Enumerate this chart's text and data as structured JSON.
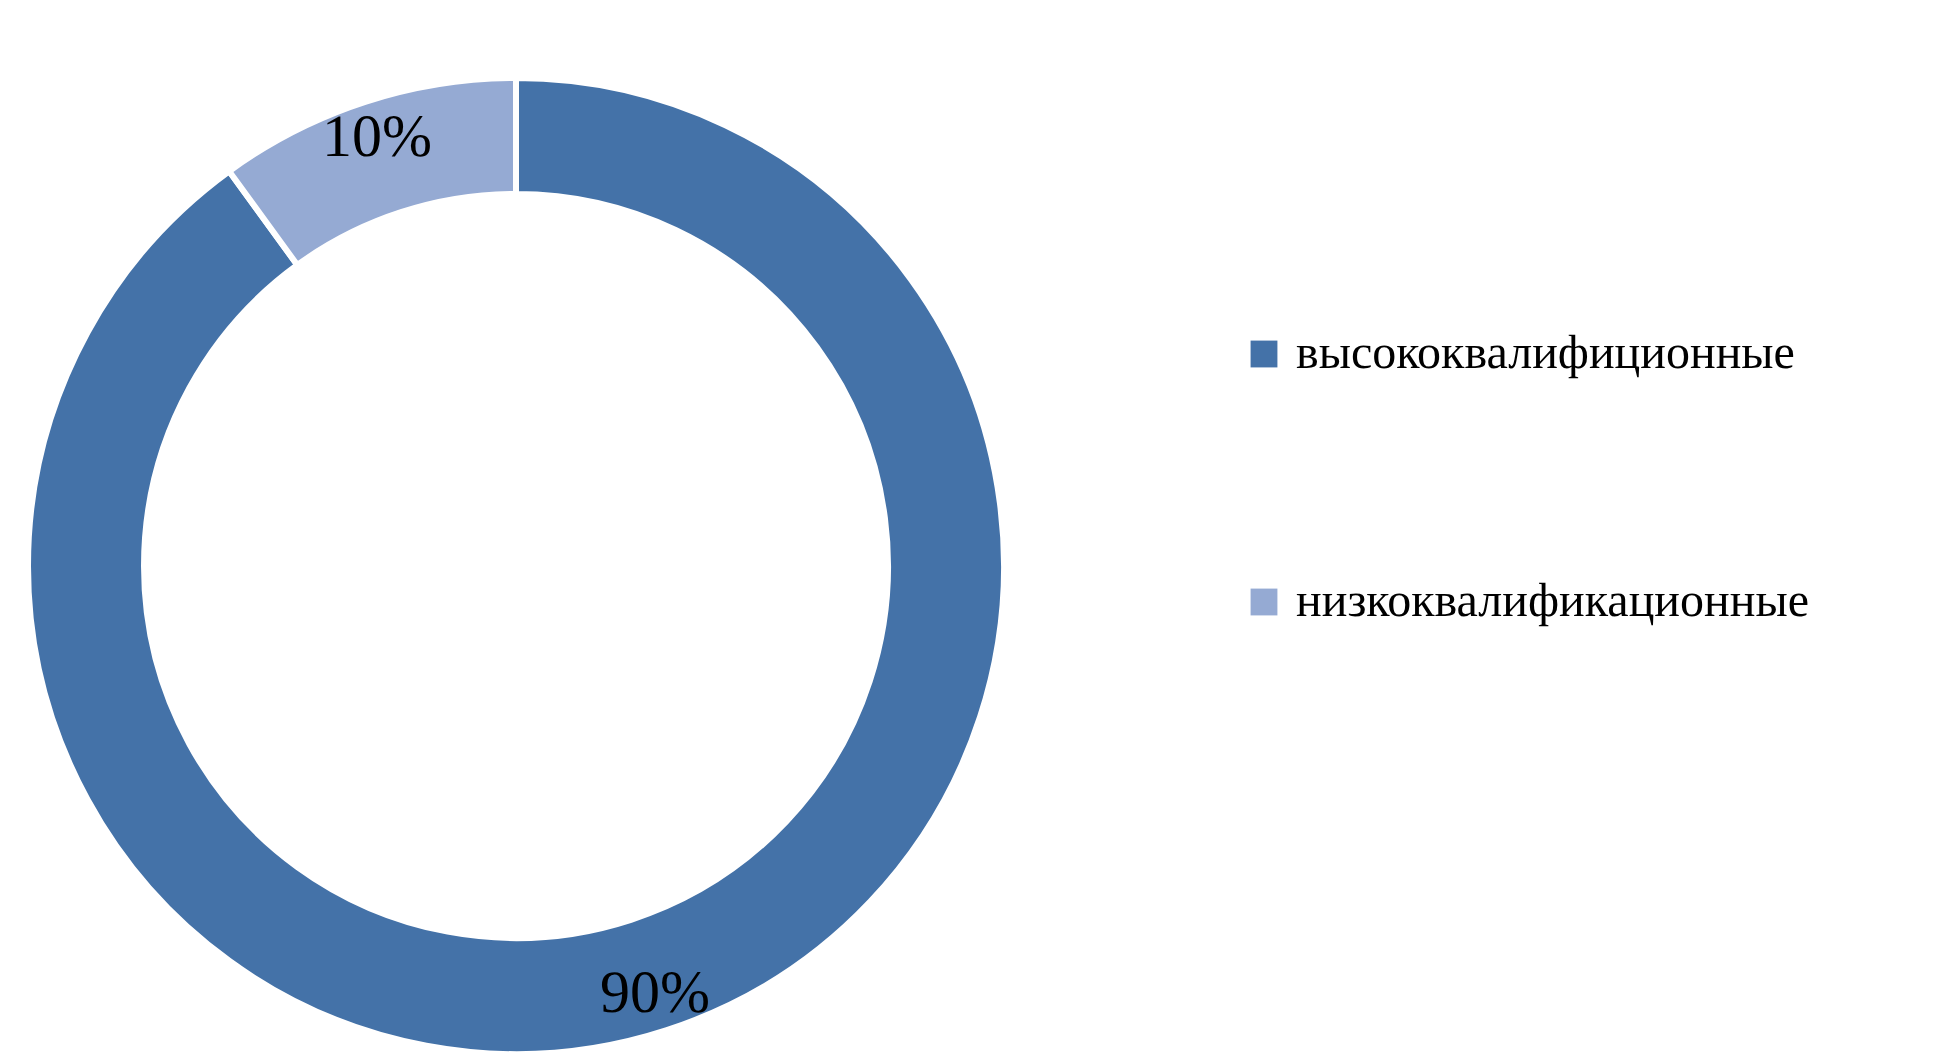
{
  "chart_data": {
    "type": "donut",
    "categories": [
      "высококвалифиционные",
      "низкоквалификационные"
    ],
    "values": [
      90,
      10
    ],
    "colors": [
      "#4472a8",
      "#95aad3"
    ],
    "value_labels": [
      "90%",
      "10%"
    ],
    "legend": "right"
  }
}
